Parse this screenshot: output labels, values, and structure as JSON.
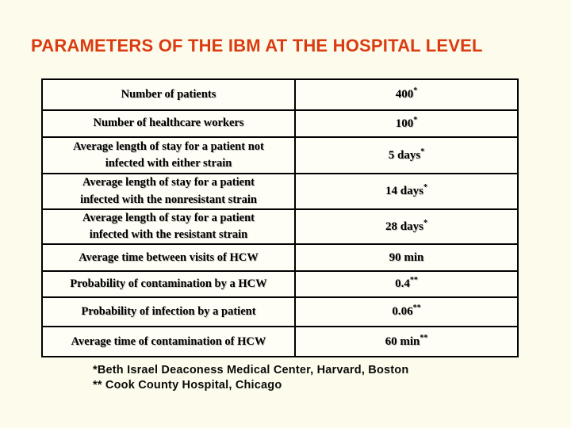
{
  "slide": {
    "title": "PARAMETERS OF THE IBM AT THE HOSPITAL LEVEL",
    "title_color": "#DB3B11",
    "background_color": "#FDFCEC"
  },
  "table": {
    "rows": [
      {
        "label": "Number of patients",
        "value": "400",
        "sup": "*"
      },
      {
        "label": "Number of healthcare workers",
        "value": "100",
        "sup": "*"
      },
      {
        "label": "Average length of stay for a patient not\ninfected with either strain",
        "value": "5 days",
        "sup": "*"
      },
      {
        "label": "Average length of stay for a patient\ninfected with the nonresistant strain",
        "value": "14 days",
        "sup": "*"
      },
      {
        "label": "Average length of stay for a patient\ninfected with the resistant strain",
        "value": "28 days",
        "sup": "*"
      },
      {
        "label": "Average time between visits of HCW",
        "value": "90 min",
        "sup": ""
      },
      {
        "label": "Probability of contamination by a HCW",
        "value": "0.4",
        "sup": "**"
      },
      {
        "label": "Probability of infection by a patient",
        "value": "0.06",
        "sup": "**"
      },
      {
        "label": "Average time of contamination of HCW",
        "value": "60 min",
        "sup": "**"
      }
    ]
  },
  "footnotes": {
    "line1": "*Beth Israel Deaconess Medical Center, Harvard, Boston",
    "line2": "** Cook County Hospital, Chicago"
  }
}
